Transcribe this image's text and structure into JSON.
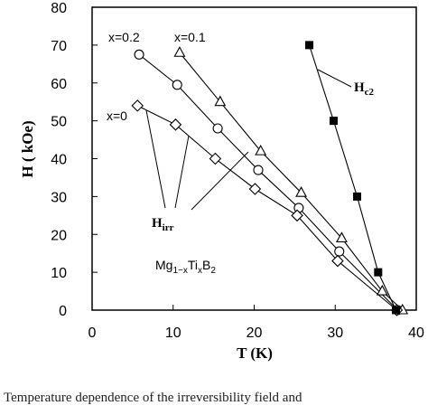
{
  "chart_data": {
    "type": "scatter",
    "xlabel": "T (K)",
    "ylabel": "H ( kOe)",
    "xlim": [
      0,
      40
    ],
    "ylim": [
      0,
      80
    ],
    "x_ticks": [
      "0",
      "10",
      "20",
      "30",
      "40"
    ],
    "y_ticks": [
      "0",
      "10",
      "20",
      "30",
      "40",
      "50",
      "60",
      "70",
      "80"
    ],
    "grid": false,
    "series": [
      {
        "name": "x=0.2",
        "marker": "circle",
        "points": [
          [
            5.8,
            67.5
          ],
          [
            10.5,
            59.5
          ],
          [
            15.5,
            48
          ],
          [
            20.5,
            37
          ],
          [
            25.5,
            27
          ],
          [
            30.5,
            15.5
          ],
          [
            37.7,
            0
          ]
        ]
      },
      {
        "name": "x=0.1",
        "marker": "triangle",
        "points": [
          [
            10.8,
            68
          ],
          [
            15.8,
            55
          ],
          [
            20.8,
            42
          ],
          [
            25.8,
            31
          ],
          [
            30.8,
            19
          ],
          [
            35.8,
            5
          ],
          [
            38.3,
            0
          ]
        ]
      },
      {
        "name": "x=0",
        "marker": "diamond",
        "points": [
          [
            5.6,
            54
          ],
          [
            10.3,
            49
          ],
          [
            15.2,
            40
          ],
          [
            20.1,
            32
          ],
          [
            25.3,
            25
          ],
          [
            30.3,
            13
          ],
          [
            37.6,
            0
          ]
        ]
      },
      {
        "name": "Hc2",
        "marker": "square",
        "points": [
          [
            26.8,
            70
          ],
          [
            29.8,
            50
          ],
          [
            32.7,
            30
          ],
          [
            35.3,
            10
          ],
          [
            37.5,
            0
          ]
        ]
      }
    ],
    "annotations": {
      "hc2_label": "H",
      "hc2_sub": "c2",
      "hirr_label": "H",
      "hirr_sub": "irr",
      "compound_main": "Mg",
      "compound_sub1": "1−x",
      "compound_mid": "Ti",
      "compound_sub2": "x",
      "compound_end": "B",
      "compound_sub3": "2"
    }
  },
  "caption": "Temperature dependence of the irreversibility field and"
}
